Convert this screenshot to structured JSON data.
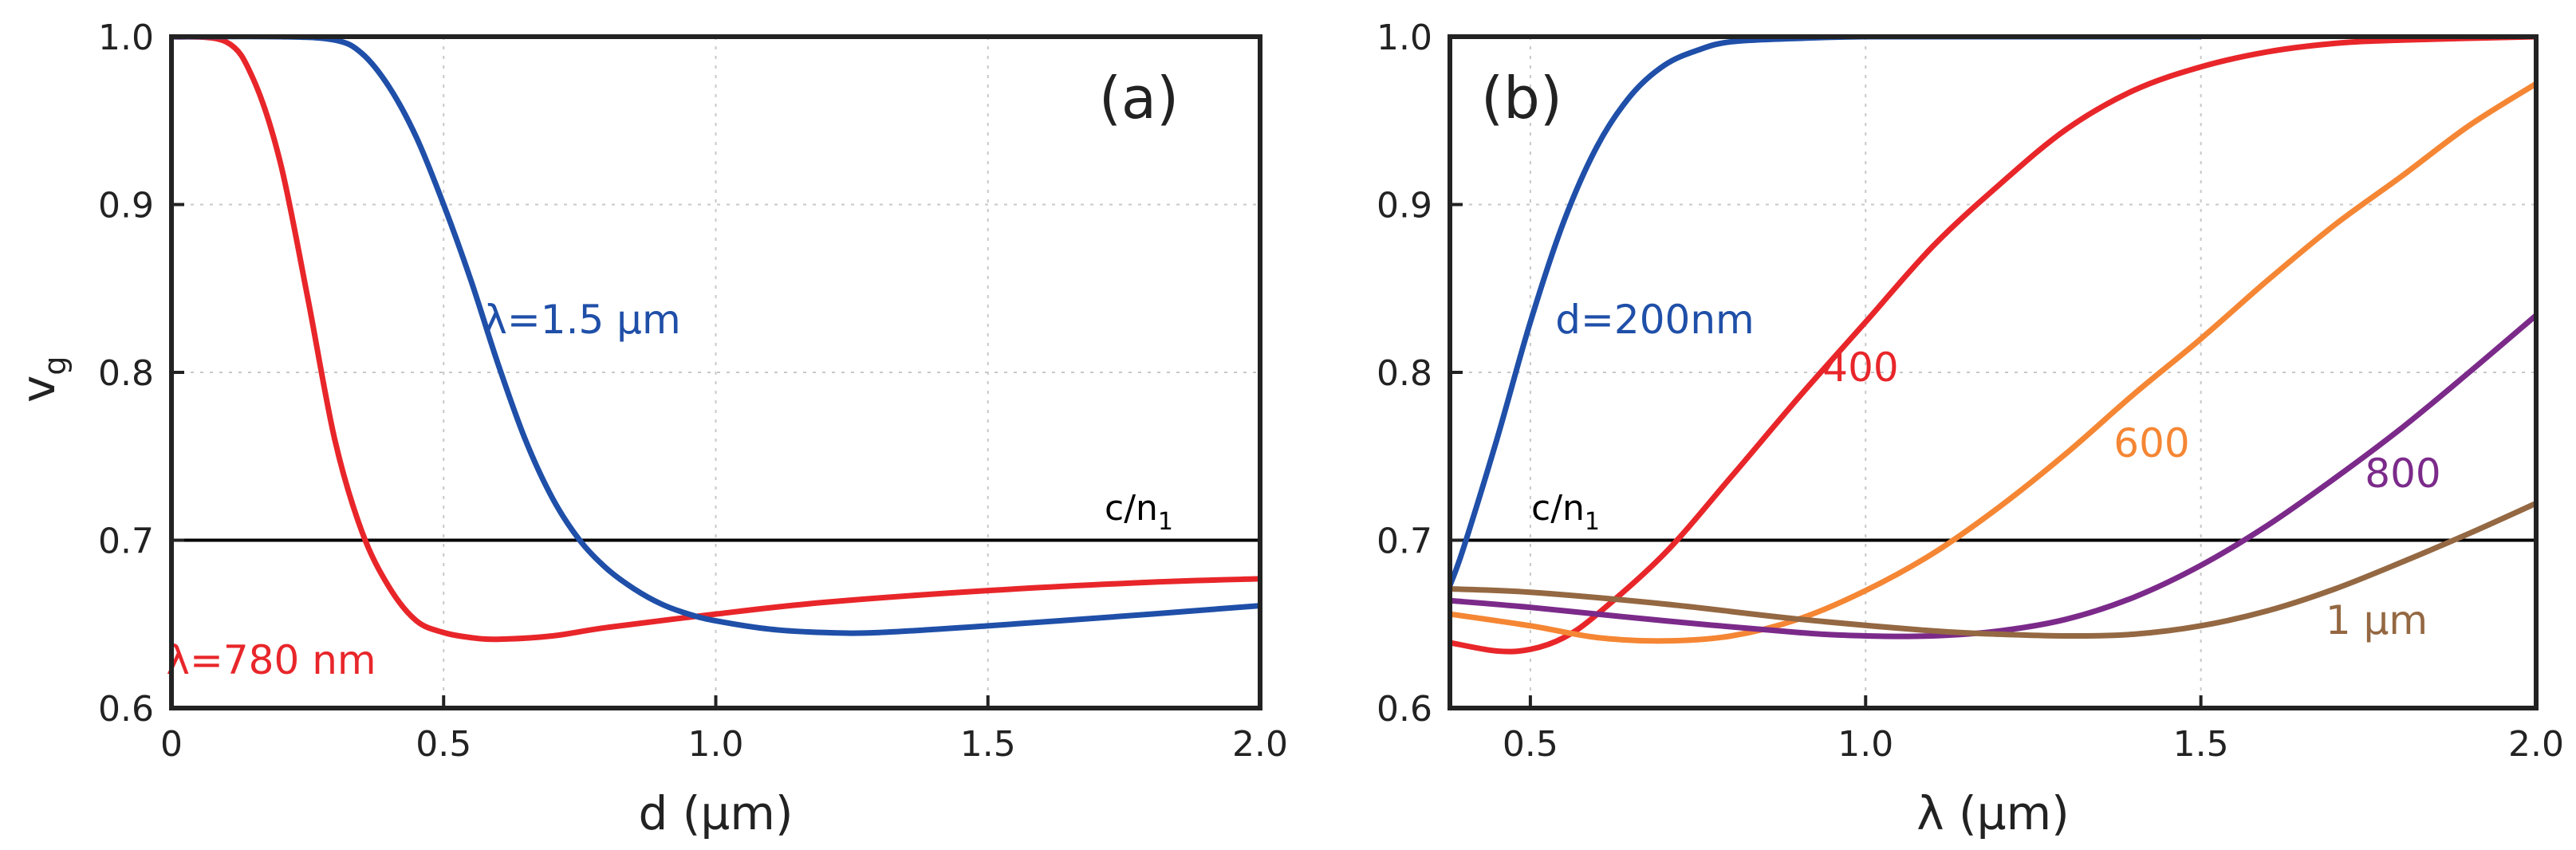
{
  "chart_data": [
    {
      "type": "line",
      "panel_label": "(a)",
      "xlabel": "d (µm)",
      "ylabel": "v",
      "ylabel_sub": "g",
      "xlim": [
        0,
        2.0
      ],
      "ylim": [
        0.6,
        1.0
      ],
      "xticks": [
        0,
        0.5,
        1.0,
        1.5,
        2.0
      ],
      "xtick_labels": [
        "0",
        "0.5",
        "1.0",
        "1.5",
        "2.0"
      ],
      "yticks": [
        0.6,
        0.7,
        0.8,
        0.9,
        1.0
      ],
      "ytick_labels": [
        "0.6",
        "0.7",
        "0.8",
        "0.9",
        "1.0"
      ],
      "grid": true,
      "reference_line": {
        "y": 0.7,
        "label": "c/n",
        "label_sub": "1",
        "color": "#000000"
      },
      "series": [
        {
          "name": "λ=780 nm",
          "color": "#e8262a",
          "x": [
            0,
            0.1,
            0.15,
            0.2,
            0.25,
            0.3,
            0.35,
            0.4,
            0.45,
            0.5,
            0.55,
            0.6,
            0.7,
            0.8,
            1.0,
            1.2,
            1.5,
            1.8,
            2.0
          ],
          "y": [
            1.0,
            0.997,
            0.975,
            0.925,
            0.845,
            0.76,
            0.705,
            0.672,
            0.652,
            0.645,
            0.642,
            0.641,
            0.643,
            0.648,
            0.656,
            0.663,
            0.67,
            0.675,
            0.677
          ]
        },
        {
          "name": "λ=1.5 µm",
          "color": "#1f4fa8",
          "x": [
            0,
            0.2,
            0.3,
            0.35,
            0.4,
            0.45,
            0.5,
            0.55,
            0.6,
            0.65,
            0.7,
            0.75,
            0.8,
            0.85,
            0.9,
            0.95,
            1.0,
            1.1,
            1.2,
            1.3,
            1.5,
            1.8,
            2.0
          ],
          "y": [
            1.0,
            1.0,
            0.998,
            0.99,
            0.97,
            0.94,
            0.9,
            0.855,
            0.805,
            0.76,
            0.725,
            0.7,
            0.683,
            0.671,
            0.662,
            0.656,
            0.652,
            0.647,
            0.645,
            0.645,
            0.649,
            0.656,
            0.661
          ]
        }
      ],
      "annotations": [
        {
          "text": "λ=780 nm",
          "color": "#e8262a",
          "x": 0.26,
          "y": 0.625
        },
        {
          "text": "λ=1.5 µm",
          "color": "#1f4fa8",
          "x": 0.78,
          "y": 0.826
        }
      ]
    },
    {
      "type": "line",
      "panel_label": "(b)",
      "xlabel": "λ (µm)",
      "ylabel": "",
      "xlim": [
        0.38,
        2.0
      ],
      "ylim": [
        0.6,
        1.0
      ],
      "xticks": [
        0.5,
        1.0,
        1.5,
        2.0
      ],
      "xtick_labels": [
        "0.5",
        "1.0",
        "1.5",
        "2.0"
      ],
      "yticks": [
        0.6,
        0.7,
        0.8,
        0.9,
        1.0
      ],
      "ytick_labels": [
        "0.6",
        "0.7",
        "0.8",
        "0.9",
        "1.0"
      ],
      "grid": true,
      "reference_line": {
        "y": 0.7,
        "label": "c/n",
        "label_sub": "1",
        "color": "#000000"
      },
      "series": [
        {
          "name": "d=200nm",
          "color": "#1f4fa8",
          "x": [
            0.38,
            0.4,
            0.45,
            0.5,
            0.55,
            0.6,
            0.65,
            0.7,
            0.75,
            0.8,
            0.9,
            1.0,
            1.2,
            1.5
          ],
          "y": [
            0.673,
            0.695,
            0.76,
            0.83,
            0.89,
            0.935,
            0.965,
            0.983,
            0.992,
            0.997,
            0.999,
            1.0,
            1.0,
            1.0
          ]
        },
        {
          "name": "400",
          "color": "#e8262a",
          "x": [
            0.38,
            0.45,
            0.5,
            0.55,
            0.6,
            0.7,
            0.8,
            0.9,
            1.0,
            1.1,
            1.2,
            1.3,
            1.4,
            1.5,
            1.6,
            1.7,
            1.8,
            2.0
          ],
          "y": [
            0.639,
            0.634,
            0.635,
            0.642,
            0.656,
            0.692,
            0.738,
            0.785,
            0.83,
            0.875,
            0.912,
            0.945,
            0.968,
            0.982,
            0.991,
            0.996,
            0.998,
            1.0
          ]
        },
        {
          "name": "600",
          "color": "#f58634",
          "x": [
            0.38,
            0.5,
            0.6,
            0.7,
            0.8,
            0.9,
            1.0,
            1.1,
            1.2,
            1.3,
            1.4,
            1.5,
            1.6,
            1.7,
            1.8,
            1.9,
            2.0
          ],
          "y": [
            0.656,
            0.649,
            0.642,
            0.64,
            0.643,
            0.653,
            0.67,
            0.692,
            0.72,
            0.752,
            0.787,
            0.82,
            0.855,
            0.888,
            0.917,
            0.947,
            0.972
          ]
        },
        {
          "name": "800",
          "color": "#7b2a8a",
          "x": [
            0.38,
            0.5,
            0.7,
            0.9,
            1.0,
            1.1,
            1.2,
            1.3,
            1.4,
            1.5,
            1.6,
            1.7,
            1.8,
            1.9,
            2.0
          ],
          "y": [
            0.664,
            0.66,
            0.652,
            0.645,
            0.643,
            0.643,
            0.646,
            0.653,
            0.666,
            0.685,
            0.709,
            0.737,
            0.767,
            0.8,
            0.834
          ]
        },
        {
          "name": "1 µm",
          "color": "#946842",
          "x": [
            0.38,
            0.5,
            0.7,
            0.9,
            1.1,
            1.2,
            1.3,
            1.4,
            1.5,
            1.6,
            1.7,
            1.8,
            1.9,
            2.0
          ],
          "y": [
            0.671,
            0.669,
            0.662,
            0.653,
            0.646,
            0.644,
            0.643,
            0.644,
            0.649,
            0.658,
            0.671,
            0.687,
            0.704,
            0.722
          ]
        }
      ],
      "annotations": [
        {
          "text": "d=200nm",
          "color": "#1f4fa8",
          "x": 0.5,
          "y": 0.826
        },
        {
          "text": "400",
          "color": "#e8262a",
          "x": 1.0,
          "y": 0.795
        },
        {
          "text": "600",
          "color": "#f58634",
          "x": 1.38,
          "y": 0.752
        },
        {
          "text": "800",
          "color": "#7b2a8a",
          "x": 1.74,
          "y": 0.733
        },
        {
          "text": "1 µm",
          "color": "#946842",
          "x": 1.72,
          "y": 0.646
        }
      ]
    }
  ]
}
